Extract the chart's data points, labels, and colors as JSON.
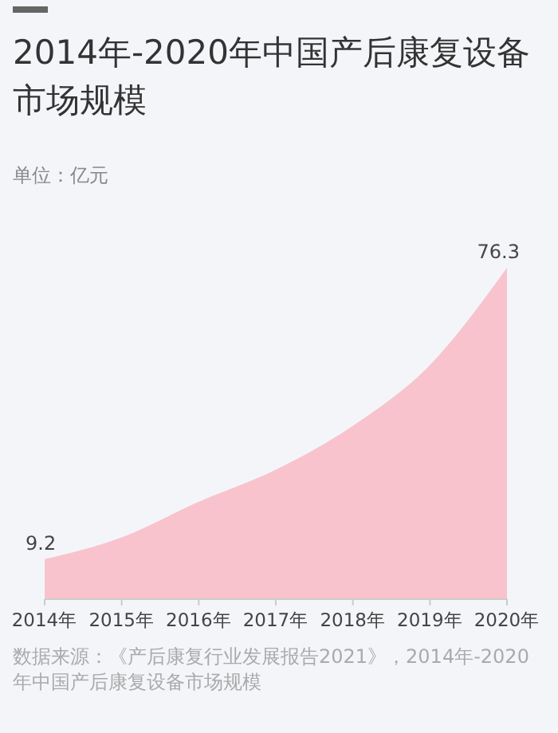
{
  "chart_data": {
    "type": "area",
    "title": "2014年-2020年中国产后康复设备市场规模",
    "ylabel": "单位：亿元",
    "categories": [
      "2014年",
      "2015年",
      "2016年",
      "2017年",
      "2018年",
      "2019年",
      "2020年"
    ],
    "series": [
      {
        "color": "#f8c3cd",
        "values": [
          9.2,
          14.2,
          22.4,
          29.8,
          39.9,
          53.9,
          76.3
        ],
        "value_labels": [
          "9.2",
          null,
          null,
          null,
          null,
          null,
          "76.3"
        ]
      }
    ],
    "annotations": [
      "数据来源：《产后康复行业发展报告2021》，2014年-2020年中国产后康复设备市场规模"
    ],
    "data_labels": false
  }
}
